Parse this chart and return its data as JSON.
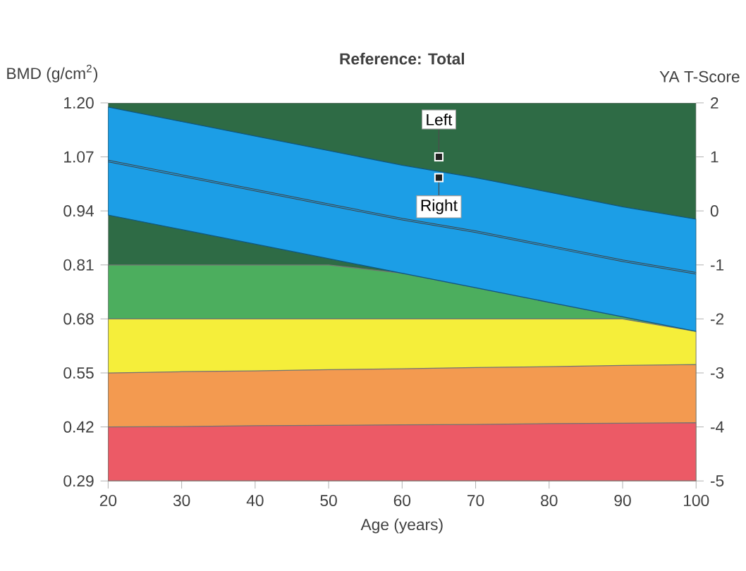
{
  "chart_data": {
    "type": "area",
    "title": "Reference: Total",
    "xlabel": "Age (years)",
    "ylabel": "BMD (g/cm$^{2}$)",
    "y2label": "YA T-Score",
    "x": [
      20,
      30,
      40,
      50,
      60,
      70,
      80,
      90,
      100
    ],
    "series": [
      {
        "type": "area",
        "color": "#2e6b45",
        "values": [
          1.2,
          1.2,
          1.2,
          1.2,
          1.2,
          1.2,
          1.2,
          1.2,
          1.2
        ]
      },
      {
        "type": "area",
        "color": "#4cae5e",
        "values": [
          0.81,
          0.81,
          0.81,
          0.81,
          0.79,
          0.755,
          0.72,
          0.685,
          0.65
        ]
      },
      {
        "type": "area",
        "color": "#f5ee3a",
        "values": [
          0.68,
          0.68,
          0.68,
          0.68,
          0.68,
          0.68,
          0.68,
          0.68,
          0.65
        ]
      },
      {
        "type": "area",
        "color": "#f39a50",
        "values": [
          0.55,
          0.553,
          0.555,
          0.558,
          0.56,
          0.563,
          0.565,
          0.568,
          0.57
        ]
      },
      {
        "type": "area",
        "color": "#ec5a66",
        "values": [
          0.42,
          0.421,
          0.423,
          0.424,
          0.425,
          0.426,
          0.428,
          0.429,
          0.43
        ]
      },
      {
        "type": "line",
        "color": "#1c9ee6",
        "values": [
          1.06,
          1.025,
          0.99,
          0.955,
          0.92,
          0.89,
          0.855,
          0.82,
          0.79
        ],
        "lower": [
          0.93,
          0.895,
          0.86,
          0.825,
          0.79,
          0.755,
          0.72,
          0.685,
          0.65
        ],
        "upper": [
          1.19,
          1.155,
          1.12,
          1.085,
          1.05,
          1.02,
          0.985,
          0.95,
          0.92
        ]
      },
      {
        "type": "scatter",
        "color": "#222222",
        "x": [
          65,
          65
        ],
        "values": [
          1.07,
          1.02
        ],
        "marker": "square"
      }
    ],
    "annotations": [
      {
        "text": "Left",
        "x": 65,
        "y": 1.07
      },
      {
        "text": "Right",
        "x": 65,
        "y": 1.02
      }
    ],
    "xlim": [
      20,
      100
    ],
    "xticks": [
      20,
      30,
      40,
      50,
      60,
      70,
      80,
      90,
      100
    ],
    "ylim": [
      0.29,
      1.2
    ],
    "yticks": [
      0.29,
      0.42,
      0.55,
      0.68,
      0.81,
      0.94,
      1.07,
      {
        "value": 1.2,
        "label": "1.20"
      }
    ],
    "y2lim": [
      -5,
      2
    ],
    "y2ticks": [
      -5,
      -4,
      -3,
      -2,
      -1,
      0,
      1,
      2
    ]
  }
}
